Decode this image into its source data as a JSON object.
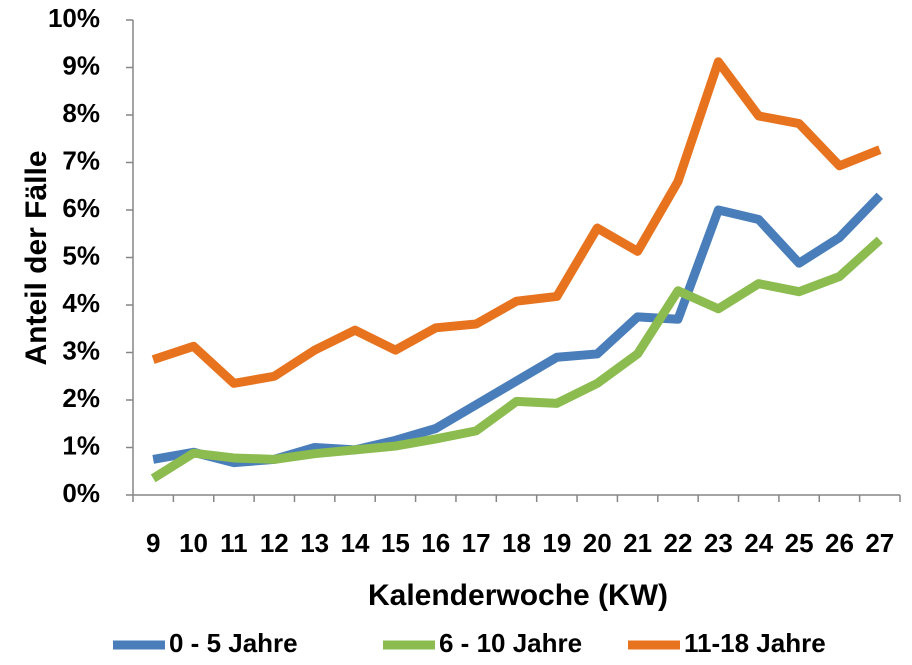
{
  "chart_data": {
    "type": "line",
    "x_label": "Kalenderwoche (KW)",
    "y_label": "Anteil der Fälle",
    "categories": [
      "9",
      "10",
      "11",
      "12",
      "13",
      "14",
      "15",
      "16",
      "17",
      "18",
      "19",
      "20",
      "21",
      "22",
      "23",
      "24",
      "25",
      "26",
      "27"
    ],
    "series": [
      {
        "name": "0 - 5 Jahre",
        "color": "#4a7ebb",
        "values": [
          0.75,
          0.9,
          0.68,
          0.75,
          1.0,
          0.95,
          1.15,
          1.4,
          1.9,
          2.4,
          2.9,
          2.97,
          3.75,
          3.7,
          6.0,
          5.8,
          4.88,
          5.42,
          6.3
        ]
      },
      {
        "name": "6 - 10 Jahre",
        "color": "#8cbc4f",
        "values": [
          0.35,
          0.88,
          0.78,
          0.75,
          0.87,
          0.95,
          1.03,
          1.18,
          1.35,
          1.97,
          1.93,
          2.35,
          2.97,
          4.3,
          3.92,
          4.45,
          4.28,
          4.6,
          5.37
        ]
      },
      {
        "name": "11-18 Jahre",
        "color": "#e8731f",
        "values": [
          2.85,
          3.13,
          2.35,
          2.5,
          3.05,
          3.47,
          3.05,
          3.52,
          3.6,
          4.08,
          4.18,
          5.62,
          5.13,
          6.6,
          9.12,
          7.98,
          7.82,
          6.93,
          7.27
        ]
      }
    ],
    "ylim": [
      0,
      10
    ],
    "yticks": [
      {
        "value": 0,
        "label": "0%"
      },
      {
        "value": 1,
        "label": "1%"
      },
      {
        "value": 2,
        "label": "2%"
      },
      {
        "value": 3,
        "label": "3%"
      },
      {
        "value": 4,
        "label": "4%"
      },
      {
        "value": 5,
        "label": "5%"
      },
      {
        "value": 6,
        "label": "6%"
      },
      {
        "value": 7,
        "label": "7%"
      },
      {
        "value": 8,
        "label": "8%"
      },
      {
        "value": 9,
        "label": "9%"
      },
      {
        "value": 10,
        "label": "10%"
      }
    ],
    "grid": false,
    "legend": "bottom"
  }
}
